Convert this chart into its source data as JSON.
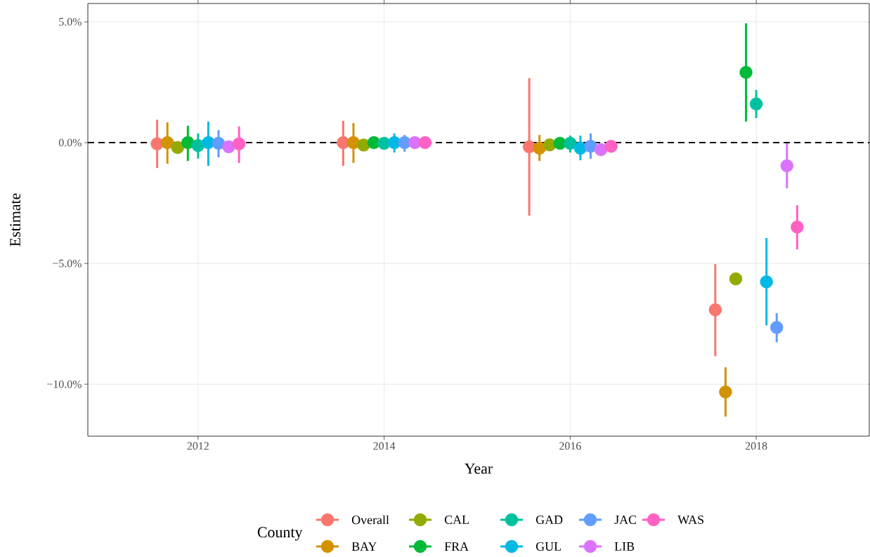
{
  "chart_data": {
    "type": "scatter",
    "xlabel": "Year",
    "ylabel": "Estimate",
    "legend_title": "County",
    "xlim": [
      2010.815,
      2019.215
    ],
    "ylim": [
      -12.15,
      5.76
    ],
    "xticks": [
      2012,
      2014,
      2016,
      2018
    ],
    "yticks": [
      {
        "value": -10,
        "label": "−10.0%"
      },
      {
        "value": -5,
        "label": "−5.0%"
      },
      {
        "value": 0,
        "label": "0.0%"
      },
      {
        "value": 5,
        "label": "5.0%"
      }
    ],
    "grid": true,
    "legend": "bottom",
    "marker": "circle",
    "ref_lines": [
      {
        "axis": "y",
        "value": 0,
        "line_style": "dashed",
        "color": "#000000"
      }
    ],
    "series": [
      {
        "name": "Overall",
        "color": "#F8766D",
        "x": [
          2011.56,
          2013.56,
          2015.56,
          2017.56
        ],
        "values": [
          -0.05,
          0,
          -0.17,
          -6.92
        ],
        "errors": [
          [
            -1.05,
            0.95
          ],
          [
            -0.96,
            0.9
          ],
          [
            -3.02,
            2.67
          ],
          [
            -8.84,
            -5.03
          ]
        ]
      },
      {
        "name": "BAY",
        "color": "#D39200",
        "x": [
          2011.67,
          2013.67,
          2015.67,
          2017.67
        ],
        "values": [
          0,
          0,
          -0.23,
          -10.32
        ],
        "errors": [
          [
            -0.87,
            0.84
          ],
          [
            -0.84,
            0.81
          ],
          [
            -0.76,
            0.32
          ],
          [
            -11.34,
            -9.3
          ]
        ]
      },
      {
        "name": "CAL",
        "color": "#93AA00",
        "x": [
          2011.78,
          2013.78,
          2015.78,
          2017.78
        ],
        "values": [
          -0.2,
          -0.1,
          -0.09,
          -5.64
        ],
        "errors": [
          null,
          null,
          null,
          null
        ]
      },
      {
        "name": "FRA",
        "color": "#00BA38",
        "x": [
          2011.89,
          2013.89,
          2015.89,
          2017.89
        ],
        "values": [
          0,
          0,
          -0.03,
          2.91
        ],
        "errors": [
          [
            -0.76,
            0.7
          ],
          null,
          null,
          [
            0.87,
            4.94
          ]
        ]
      },
      {
        "name": "GAD",
        "color": "#00C19F",
        "x": [
          2012.0,
          2014.0,
          2016.0,
          2018.0
        ],
        "values": [
          -0.12,
          -0.03,
          -0.03,
          1.6
        ],
        "errors": [
          [
            -0.66,
            0.38
          ],
          [
            -0.2,
            0.15
          ],
          [
            -0.41,
            0.29
          ],
          [
            1.02,
            2.18
          ]
        ]
      },
      {
        "name": "GUL",
        "color": "#00B9E3",
        "x": [
          2012.11,
          2014.11,
          2016.11,
          2018.11
        ],
        "values": [
          0,
          0,
          -0.23,
          -5.76
        ],
        "errors": [
          [
            -0.96,
            0.87
          ],
          [
            -0.41,
            0.38
          ],
          [
            -0.73,
            0.29
          ],
          [
            -7.56,
            -3.95
          ]
        ]
      },
      {
        "name": "JAC",
        "color": "#619CFF",
        "x": [
          2012.22,
          2014.22,
          2016.22,
          2018.22
        ],
        "values": [
          -0.03,
          0,
          -0.15,
          -7.65
        ],
        "errors": [
          [
            -0.61,
            0.52
          ],
          [
            -0.38,
            0.32
          ],
          [
            -0.67,
            0.38
          ],
          [
            -8.26,
            -7.06
          ]
        ]
      },
      {
        "name": "LIB",
        "color": "#DB72FB",
        "x": [
          2012.33,
          2014.33,
          2016.33,
          2018.33
        ],
        "values": [
          -0.17,
          0,
          -0.29,
          -0.96
        ],
        "errors": [
          null,
          null,
          null,
          [
            -1.89,
            -0.03
          ]
        ]
      },
      {
        "name": "WAS",
        "color": "#FF61C3",
        "x": [
          2012.44,
          2014.44,
          2016.44,
          2018.44
        ],
        "values": [
          -0.05,
          0,
          -0.15,
          -3.49
        ],
        "errors": [
          [
            -0.84,
            0.67
          ],
          null,
          null,
          [
            -4.42,
            -2.59
          ]
        ]
      }
    ]
  }
}
